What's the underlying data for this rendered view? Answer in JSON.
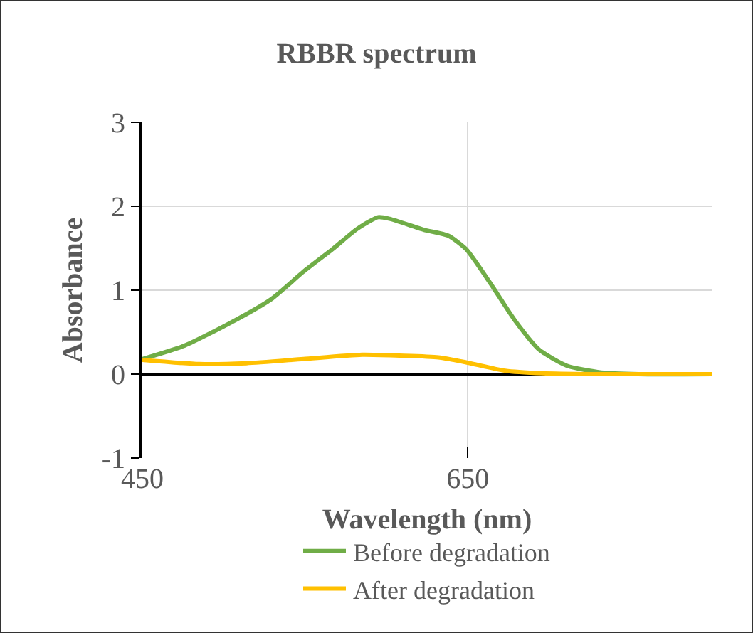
{
  "chart_data": {
    "type": "line",
    "title": "RBBR spectrum",
    "xlabel": "Wavelength (nm)",
    "ylabel": "Absorbance",
    "xlim": [
      450,
      800
    ],
    "xticks": [
      450,
      650
    ],
    "ylim": [
      -1,
      3
    ],
    "yticks": [
      -1,
      0,
      1,
      2,
      3
    ],
    "grid": true,
    "legend": "bottom",
    "marker": "none",
    "line_style": "solid",
    "series": [
      {
        "name": "Before degradation",
        "color": "#70ad47",
        "x": [
          450,
          476,
          505,
          529,
          549,
          567,
          582,
          595,
          602,
          623,
          638,
          649,
          664,
          679,
          694,
          711,
          732,
          755,
          800
        ],
        "values": [
          0.18,
          0.34,
          0.62,
          0.89,
          1.22,
          1.49,
          1.73,
          1.87,
          1.85,
          1.72,
          1.65,
          1.49,
          1.08,
          0.64,
          0.29,
          0.1,
          0.02,
          0,
          0
        ]
      },
      {
        "name": "After degradation",
        "color": "#ffc000",
        "x": [
          450,
          485,
          514,
          549,
          585,
          608,
          632,
          649,
          673,
          696,
          726,
          800
        ],
        "values": [
          0.17,
          0.12,
          0.13,
          0.18,
          0.23,
          0.22,
          0.2,
          0.14,
          0.04,
          0.01,
          0,
          0
        ]
      }
    ]
  }
}
